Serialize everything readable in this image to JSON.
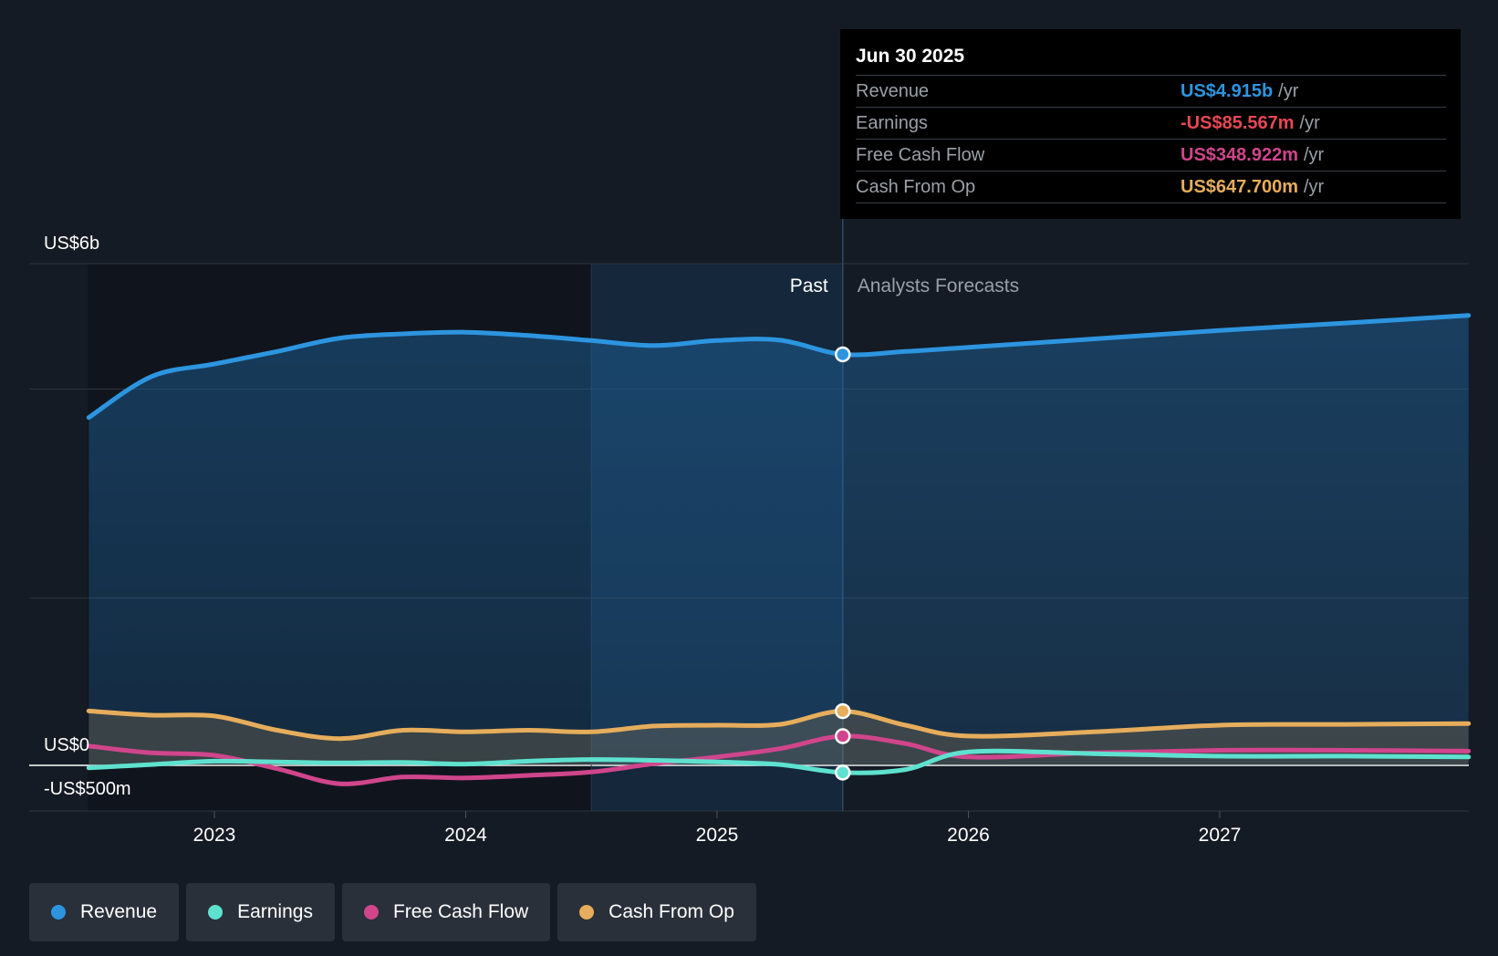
{
  "chart_data": {
    "type": "line",
    "title": "",
    "xlabel": "",
    "ylabel": "",
    "ylim": [
      -500,
      6000
    ],
    "y_axis_labels": [
      {
        "value": 6000,
        "label": "US$6b"
      },
      {
        "value": 0,
        "label": "US$0"
      },
      {
        "value": -500,
        "label": "-US$500m"
      }
    ],
    "x_ticks": [
      {
        "year": 2023,
        "label": "2023"
      },
      {
        "year": 2024,
        "label": "2024"
      },
      {
        "year": 2025,
        "label": "2025"
      },
      {
        "year": 2026,
        "label": "2026"
      },
      {
        "year": 2027,
        "label": "2027"
      }
    ],
    "divider_x": 2025.5,
    "highlight_start_x": 2024.5,
    "past_label": "Past",
    "forecast_label": "Analysts Forecasts",
    "series": [
      {
        "name": "Revenue",
        "color": "#2d95e0",
        "filled": true,
        "points": [
          [
            2022.5,
            4160
          ],
          [
            2022.75,
            4650
          ],
          [
            2023.0,
            4800
          ],
          [
            2023.25,
            4950
          ],
          [
            2023.5,
            5110
          ],
          [
            2023.75,
            5160
          ],
          [
            2024.0,
            5180
          ],
          [
            2024.25,
            5140
          ],
          [
            2024.5,
            5080
          ],
          [
            2024.75,
            5020
          ],
          [
            2025.0,
            5080
          ],
          [
            2025.25,
            5085
          ],
          [
            2025.5,
            4915
          ],
          [
            2025.75,
            4950
          ],
          [
            2026.0,
            5000
          ],
          [
            2026.5,
            5100
          ],
          [
            2027.0,
            5200
          ],
          [
            2027.5,
            5290
          ],
          [
            2027.99,
            5380
          ]
        ],
        "marker_x": 2025.5,
        "marker_y": 4915
      },
      {
        "name": "Earnings",
        "color": "#5ee2cf",
        "filled": false,
        "points": [
          [
            2022.5,
            -30
          ],
          [
            2022.75,
            10
          ],
          [
            2023.0,
            50
          ],
          [
            2023.25,
            40
          ],
          [
            2023.5,
            30
          ],
          [
            2023.75,
            35
          ],
          [
            2024.0,
            15
          ],
          [
            2024.25,
            50
          ],
          [
            2024.5,
            70
          ],
          [
            2024.75,
            60
          ],
          [
            2025.0,
            40
          ],
          [
            2025.25,
            10
          ],
          [
            2025.5,
            -86
          ],
          [
            2025.75,
            -50
          ],
          [
            2026.0,
            160
          ],
          [
            2026.5,
            140
          ],
          [
            2027.0,
            110
          ],
          [
            2027.5,
            110
          ],
          [
            2027.99,
            100
          ]
        ],
        "marker_x": 2025.5,
        "marker_y": -86
      },
      {
        "name": "Free Cash Flow",
        "color": "#d0458c",
        "filled": false,
        "points": [
          [
            2022.5,
            230
          ],
          [
            2022.75,
            150
          ],
          [
            2023.0,
            120
          ],
          [
            2023.25,
            -40
          ],
          [
            2023.5,
            -220
          ],
          [
            2023.75,
            -140
          ],
          [
            2024.0,
            -150
          ],
          [
            2024.25,
            -120
          ],
          [
            2024.5,
            -80
          ],
          [
            2024.75,
            20
          ],
          [
            2025.0,
            100
          ],
          [
            2025.25,
            200
          ],
          [
            2025.5,
            349
          ],
          [
            2025.75,
            260
          ],
          [
            2026.0,
            100
          ],
          [
            2026.5,
            150
          ],
          [
            2027.0,
            180
          ],
          [
            2027.5,
            180
          ],
          [
            2027.99,
            170
          ]
        ],
        "marker_x": 2025.5,
        "marker_y": 349
      },
      {
        "name": "Cash From Op",
        "color": "#e6ad5c",
        "filled": true,
        "points": [
          [
            2022.5,
            650
          ],
          [
            2022.75,
            600
          ],
          [
            2023.0,
            590
          ],
          [
            2023.25,
            420
          ],
          [
            2023.5,
            320
          ],
          [
            2023.75,
            420
          ],
          [
            2024.0,
            400
          ],
          [
            2024.25,
            420
          ],
          [
            2024.5,
            400
          ],
          [
            2024.75,
            470
          ],
          [
            2025.0,
            480
          ],
          [
            2025.25,
            490
          ],
          [
            2025.5,
            648
          ],
          [
            2025.75,
            480
          ],
          [
            2026.0,
            350
          ],
          [
            2026.5,
            400
          ],
          [
            2027.0,
            480
          ],
          [
            2027.5,
            490
          ],
          [
            2027.99,
            500
          ]
        ],
        "marker_x": 2025.5,
        "marker_y": 648
      }
    ]
  },
  "tooltip": {
    "date": "Jun 30 2025",
    "rows": [
      {
        "label": "Revenue",
        "value": "US$4.915b",
        "unit": "/yr",
        "color": "#2d95e0"
      },
      {
        "label": "Earnings",
        "value": "-US$85.567m",
        "unit": "/yr",
        "color": "#e84855"
      },
      {
        "label": "Free Cash Flow",
        "value": "US$348.922m",
        "unit": "/yr",
        "color": "#d0458c"
      },
      {
        "label": "Cash From Op",
        "value": "US$647.700m",
        "unit": "/yr",
        "color": "#e6ad5c"
      }
    ]
  },
  "legend": [
    {
      "label": "Revenue",
      "color": "#2d95e0"
    },
    {
      "label": "Earnings",
      "color": "#5ee2cf"
    },
    {
      "label": "Free Cash Flow",
      "color": "#d0458c"
    },
    {
      "label": "Cash From Op",
      "color": "#e6ad5c"
    }
  ]
}
